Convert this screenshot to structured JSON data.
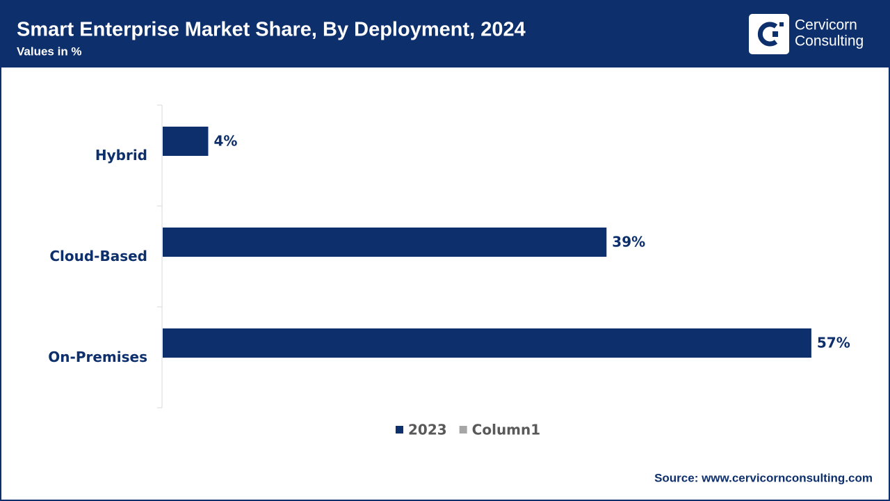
{
  "chart_data": {
    "type": "bar",
    "orientation": "horizontal",
    "title": "Smart Enterprise Market Share, By Deployment, 2024",
    "subtitle": "Values in %",
    "brand": [
      "Cervicorn",
      "Consulting"
    ],
    "source": "Source: www.cervicornconsulting.com",
    "categories": [
      "Hybrid",
      "Cloud-Based",
      "On-Premises"
    ],
    "series": [
      {
        "name": "2023",
        "color": "#0d2f6b",
        "values": [
          4,
          39,
          57
        ],
        "value_labels": [
          "4%",
          "39%",
          "57%"
        ]
      },
      {
        "name": "Column1",
        "color": "#a6a6a6",
        "values": [
          null,
          null,
          null
        ]
      }
    ],
    "xlim": [
      0,
      60
    ],
    "legend": "bottom"
  }
}
